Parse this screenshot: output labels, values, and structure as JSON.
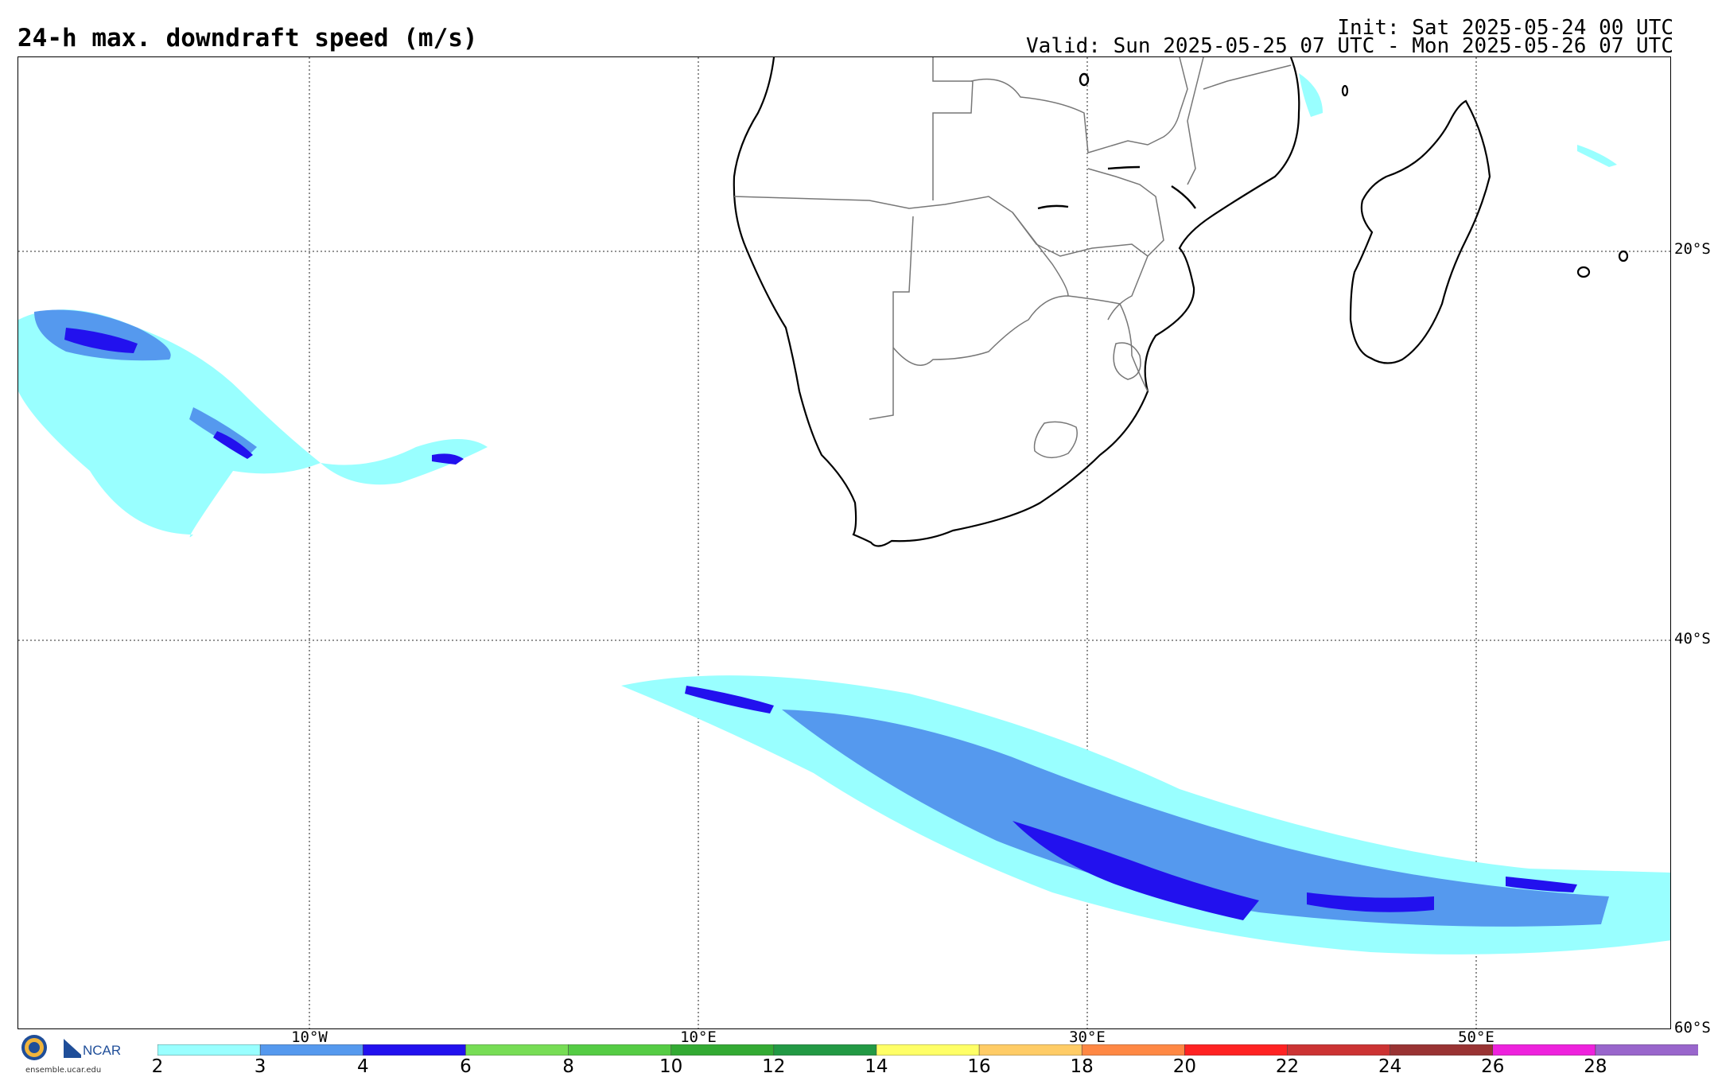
{
  "header": {
    "title": "24-h max. downdraft speed (m/s)",
    "init": "Init: Sat 2025-05-24 00 UTC",
    "valid": "Valid: Sun 2025-05-25 07 UTC - Mon 2025-05-26 07 UTC"
  },
  "map": {
    "lat_labels": [
      "20°S",
      "40°S",
      "60°S"
    ],
    "lon_labels": [
      "10°W",
      "10°E",
      "30°E",
      "50°E"
    ],
    "region": "Southern Africa / South Atlantic / SW Indian Ocean"
  },
  "colorbar": {
    "ticks": [
      "2",
      "3",
      "4",
      "6",
      "8",
      "10",
      "12",
      "14",
      "16",
      "18",
      "20",
      "22",
      "24",
      "26",
      "28"
    ],
    "colors": [
      "#99ffff",
      "#5599ee",
      "#2211ee",
      "#77dd55",
      "#55cc44",
      "#33aa33",
      "#229944",
      "#ffff66",
      "#ffcc66",
      "#ff8844",
      "#ff2222",
      "#cc3333",
      "#993333",
      "#ee22dd",
      "#9966cc"
    ]
  },
  "footer": {
    "org_logos": [
      "nsf-logo-icon",
      "ncar-logo-icon"
    ],
    "url": "ensemble.ucar.edu"
  }
}
